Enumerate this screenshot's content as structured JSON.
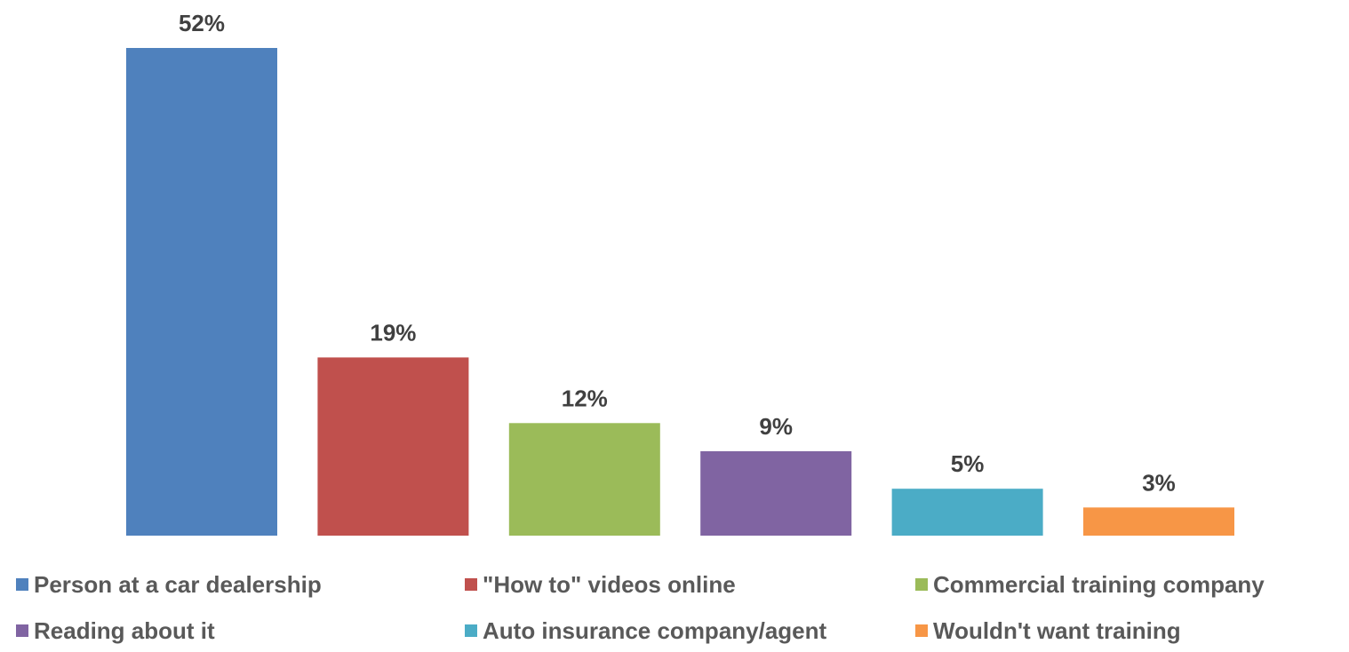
{
  "chart_data": {
    "type": "bar",
    "categories": [
      "Person at a car dealership",
      "\"How to\" videos online",
      "Commercial training company",
      "Reading about it",
      "Auto insurance company/agent",
      "Wouldn't want training"
    ],
    "values": [
      52,
      19,
      12,
      9,
      5,
      3
    ],
    "data_labels": [
      "52%",
      "19%",
      "12%",
      "9%",
      "5%",
      "3%"
    ],
    "colors": [
      "#4f81bd",
      "#c0504d",
      "#9bbb59",
      "#8064a2",
      "#4bacc6",
      "#f79646"
    ],
    "ylim": [
      0,
      52
    ],
    "grid": false,
    "legend_placement": "bottom"
  }
}
